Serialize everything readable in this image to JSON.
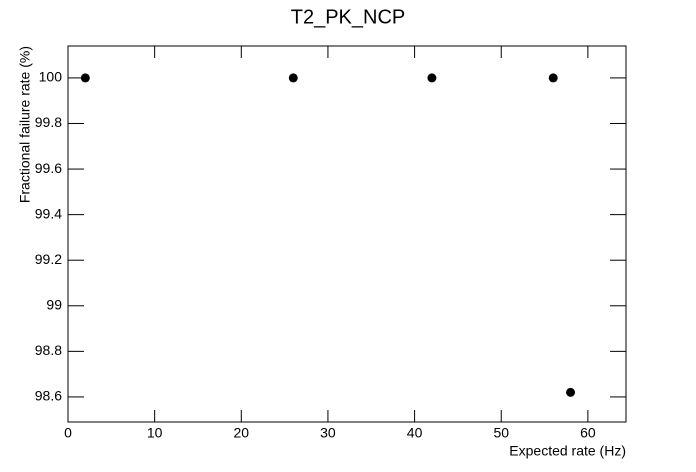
{
  "chart_data": {
    "type": "scatter",
    "title": "T2_PK_NCP",
    "x_label": "Expected rate (Hz)",
    "y_label": "Fractional failure rate (%)",
    "series": [
      {
        "color": "#000000",
        "x": [
          2,
          26,
          42,
          56,
          58
        ],
        "values": [
          100,
          100,
          100,
          100,
          98.62
        ]
      }
    ],
    "xlim": [
      0,
      64.4
    ],
    "xticks": [
      0,
      10,
      20,
      30,
      40,
      50,
      60
    ],
    "ylim": [
      98.49,
      100.14
    ],
    "yticks": [
      98.6,
      98.8,
      99,
      99.2,
      99.4,
      99.6,
      99.8,
      100
    ],
    "grid": false
  }
}
